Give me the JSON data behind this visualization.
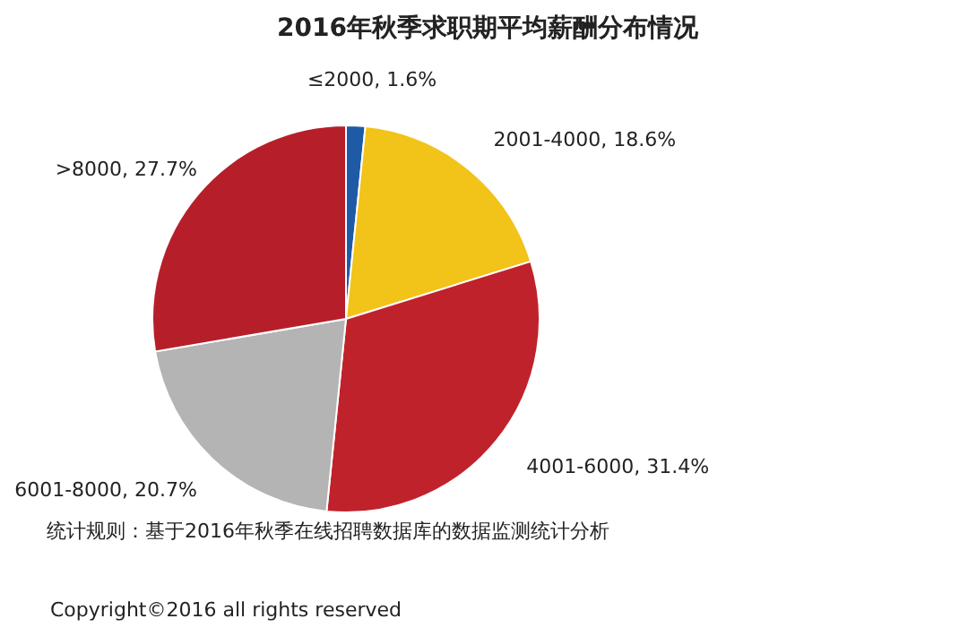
{
  "chart_data": {
    "type": "pie",
    "title": "2016年秋季求职期平均薪酬分布情况",
    "categories": [
      "≤2000",
      "2001-4000",
      "4001-6000",
      "6001-8000",
      ">8000"
    ],
    "values": [
      1.6,
      18.6,
      31.4,
      20.7,
      27.7
    ],
    "colors": [
      "#1f5aa6",
      "#f2c318",
      "#c0222b",
      "#b4b4b4",
      "#b61f2a"
    ],
    "value_labels": [
      "1.6%",
      "18.6%",
      "31.4%",
      "20.7%",
      "27.7%"
    ],
    "annotations": [
      "统计规则：基于2016年秋季在线招聘数据库的数据监测统计分析",
      "Copyright©2016 all rights reserved"
    ]
  }
}
